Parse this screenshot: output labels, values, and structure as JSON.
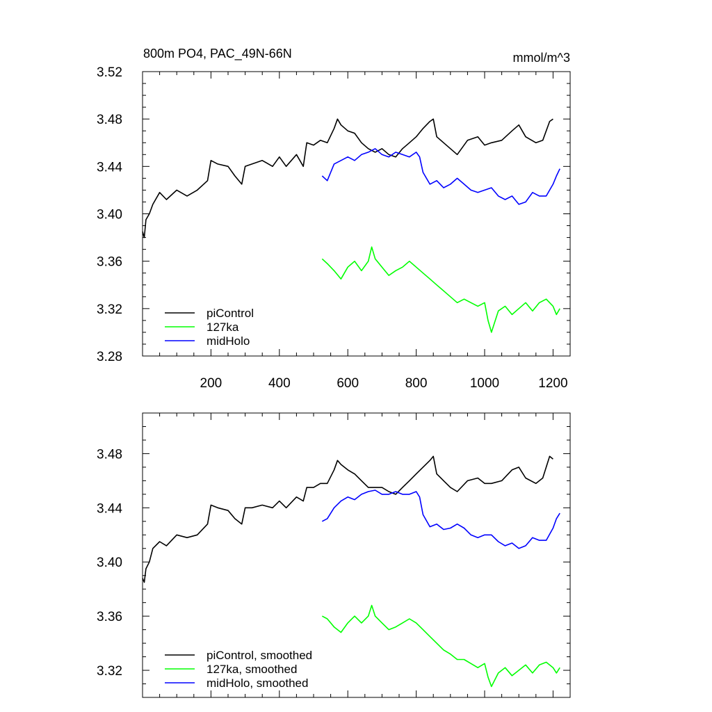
{
  "chart_data": [
    {
      "type": "line",
      "title": "800m PO4, PAC_49N-66N",
      "units": "mmol/m^3",
      "xlim": [
        0,
        1250
      ],
      "ylim": [
        3.28,
        3.52
      ],
      "xticks": [
        200,
        400,
        600,
        800,
        1000,
        1200
      ],
      "xtick_labels": [
        "200",
        "400",
        "600",
        "800",
        "1000",
        "1200"
      ],
      "yticks": [
        3.28,
        3.32,
        3.36,
        3.4,
        3.44,
        3.48,
        3.52
      ],
      "ytick_labels": [
        "3.28",
        "3.32",
        "3.36",
        "3.40",
        "3.44",
        "3.48",
        "3.52"
      ],
      "legend_position": "bottom-left",
      "series": [
        {
          "name": "piControl",
          "color": "#000000",
          "x": [
            0,
            5,
            10,
            20,
            30,
            50,
            70,
            100,
            130,
            160,
            190,
            200,
            220,
            250,
            270,
            290,
            300,
            320,
            350,
            380,
            400,
            420,
            450,
            470,
            480,
            500,
            520,
            540,
            560,
            570,
            580,
            600,
            620,
            640,
            660,
            680,
            700,
            720,
            740,
            760,
            780,
            800,
            820,
            840,
            850,
            860,
            880,
            900,
            920,
            950,
            980,
            1000,
            1020,
            1050,
            1080,
            1100,
            1120,
            1150,
            1170,
            1190,
            1200
          ],
          "y": [
            3.385,
            3.38,
            3.395,
            3.4,
            3.408,
            3.418,
            3.412,
            3.42,
            3.415,
            3.42,
            3.428,
            3.445,
            3.442,
            3.44,
            3.432,
            3.425,
            3.44,
            3.442,
            3.445,
            3.44,
            3.448,
            3.44,
            3.45,
            3.44,
            3.46,
            3.458,
            3.462,
            3.46,
            3.472,
            3.48,
            3.475,
            3.47,
            3.468,
            3.46,
            3.455,
            3.452,
            3.455,
            3.45,
            3.448,
            3.455,
            3.46,
            3.465,
            3.472,
            3.478,
            3.48,
            3.465,
            3.46,
            3.455,
            3.45,
            3.462,
            3.465,
            3.458,
            3.46,
            3.462,
            3.47,
            3.475,
            3.465,
            3.46,
            3.462,
            3.478,
            3.48
          ]
        },
        {
          "name": "127ka",
          "color": "#00ff00",
          "x": [
            525,
            540,
            560,
            580,
            600,
            620,
            640,
            660,
            670,
            680,
            700,
            720,
            740,
            760,
            780,
            800,
            820,
            840,
            860,
            880,
            900,
            920,
            940,
            960,
            980,
            1000,
            1010,
            1020,
            1040,
            1060,
            1080,
            1100,
            1120,
            1140,
            1160,
            1180,
            1200,
            1210,
            1220
          ],
          "y": [
            3.362,
            3.358,
            3.352,
            3.345,
            3.355,
            3.36,
            3.352,
            3.36,
            3.372,
            3.362,
            3.355,
            3.348,
            3.352,
            3.355,
            3.36,
            3.355,
            3.35,
            3.345,
            3.34,
            3.335,
            3.33,
            3.325,
            3.328,
            3.325,
            3.322,
            3.325,
            3.31,
            3.3,
            3.318,
            3.322,
            3.315,
            3.32,
            3.325,
            3.318,
            3.325,
            3.328,
            3.322,
            3.315,
            3.32
          ]
        },
        {
          "name": "midHolo",
          "color": "#0000ff",
          "x": [
            525,
            540,
            560,
            580,
            600,
            620,
            640,
            660,
            680,
            700,
            720,
            740,
            760,
            780,
            800,
            810,
            820,
            840,
            860,
            880,
            900,
            920,
            940,
            960,
            980,
            1000,
            1020,
            1040,
            1060,
            1080,
            1100,
            1120,
            1140,
            1160,
            1180,
            1200,
            1210,
            1220
          ],
          "y": [
            3.432,
            3.428,
            3.442,
            3.445,
            3.448,
            3.445,
            3.45,
            3.452,
            3.455,
            3.45,
            3.448,
            3.452,
            3.45,
            3.448,
            3.452,
            3.448,
            3.435,
            3.425,
            3.428,
            3.422,
            3.425,
            3.43,
            3.425,
            3.42,
            3.418,
            3.42,
            3.422,
            3.415,
            3.412,
            3.415,
            3.408,
            3.41,
            3.418,
            3.415,
            3.415,
            3.425,
            3.432,
            3.438
          ]
        }
      ]
    },
    {
      "type": "line",
      "xlim": [
        0,
        1250
      ],
      "ylim": [
        3.3,
        3.51
      ],
      "xticks": [
        200,
        400,
        600,
        800,
        1000,
        1200
      ],
      "yticks": [
        3.32,
        3.36,
        3.4,
        3.44,
        3.48
      ],
      "ytick_labels": [
        "3.32",
        "3.36",
        "3.40",
        "3.44",
        "3.48"
      ],
      "legend_position": "bottom-left",
      "series": [
        {
          "name": "piControl, smoothed",
          "color": "#000000",
          "x": [
            0,
            5,
            10,
            20,
            30,
            50,
            70,
            100,
            130,
            160,
            190,
            200,
            220,
            250,
            270,
            290,
            300,
            320,
            350,
            380,
            400,
            420,
            450,
            470,
            480,
            500,
            520,
            540,
            560,
            570,
            580,
            600,
            620,
            640,
            660,
            680,
            700,
            720,
            740,
            760,
            780,
            800,
            820,
            840,
            850,
            860,
            880,
            900,
            920,
            950,
            980,
            1000,
            1020,
            1050,
            1080,
            1100,
            1120,
            1150,
            1170,
            1190,
            1200
          ],
          "y": [
            3.388,
            3.385,
            3.395,
            3.4,
            3.41,
            3.415,
            3.412,
            3.42,
            3.418,
            3.42,
            3.428,
            3.442,
            3.44,
            3.438,
            3.432,
            3.428,
            3.44,
            3.44,
            3.442,
            3.44,
            3.445,
            3.44,
            3.448,
            3.445,
            3.455,
            3.455,
            3.458,
            3.458,
            3.468,
            3.475,
            3.472,
            3.468,
            3.465,
            3.46,
            3.455,
            3.455,
            3.455,
            3.452,
            3.45,
            3.455,
            3.46,
            3.465,
            3.47,
            3.475,
            3.478,
            3.465,
            3.46,
            3.455,
            3.452,
            3.46,
            3.462,
            3.458,
            3.458,
            3.46,
            3.468,
            3.47,
            3.462,
            3.458,
            3.462,
            3.478,
            3.476
          ]
        },
        {
          "name": "127ka, smoothed",
          "color": "#00ff00",
          "x": [
            525,
            540,
            560,
            580,
            600,
            620,
            640,
            660,
            670,
            680,
            700,
            720,
            740,
            760,
            780,
            800,
            820,
            840,
            860,
            880,
            900,
            920,
            940,
            960,
            980,
            1000,
            1010,
            1020,
            1040,
            1060,
            1080,
            1100,
            1120,
            1140,
            1160,
            1180,
            1200,
            1210,
            1220
          ],
          "y": [
            3.36,
            3.358,
            3.352,
            3.348,
            3.355,
            3.36,
            3.355,
            3.36,
            3.368,
            3.36,
            3.355,
            3.35,
            3.352,
            3.355,
            3.358,
            3.355,
            3.35,
            3.345,
            3.34,
            3.335,
            3.332,
            3.328,
            3.328,
            3.325,
            3.322,
            3.325,
            3.315,
            3.308,
            3.318,
            3.322,
            3.316,
            3.32,
            3.324,
            3.318,
            3.324,
            3.326,
            3.322,
            3.318,
            3.322
          ]
        },
        {
          "name": "midHolo, smoothed",
          "color": "#0000ff",
          "x": [
            525,
            540,
            560,
            580,
            600,
            620,
            640,
            660,
            680,
            700,
            720,
            740,
            760,
            780,
            800,
            810,
            820,
            840,
            860,
            880,
            900,
            920,
            940,
            960,
            980,
            1000,
            1020,
            1040,
            1060,
            1080,
            1100,
            1120,
            1140,
            1160,
            1180,
            1200,
            1210,
            1220
          ],
          "y": [
            3.43,
            3.432,
            3.44,
            3.445,
            3.448,
            3.446,
            3.45,
            3.452,
            3.453,
            3.45,
            3.45,
            3.452,
            3.45,
            3.45,
            3.452,
            3.448,
            3.435,
            3.426,
            3.428,
            3.424,
            3.425,
            3.428,
            3.425,
            3.42,
            3.418,
            3.42,
            3.42,
            3.415,
            3.412,
            3.414,
            3.41,
            3.412,
            3.418,
            3.416,
            3.416,
            3.425,
            3.432,
            3.436
          ]
        }
      ]
    }
  ]
}
